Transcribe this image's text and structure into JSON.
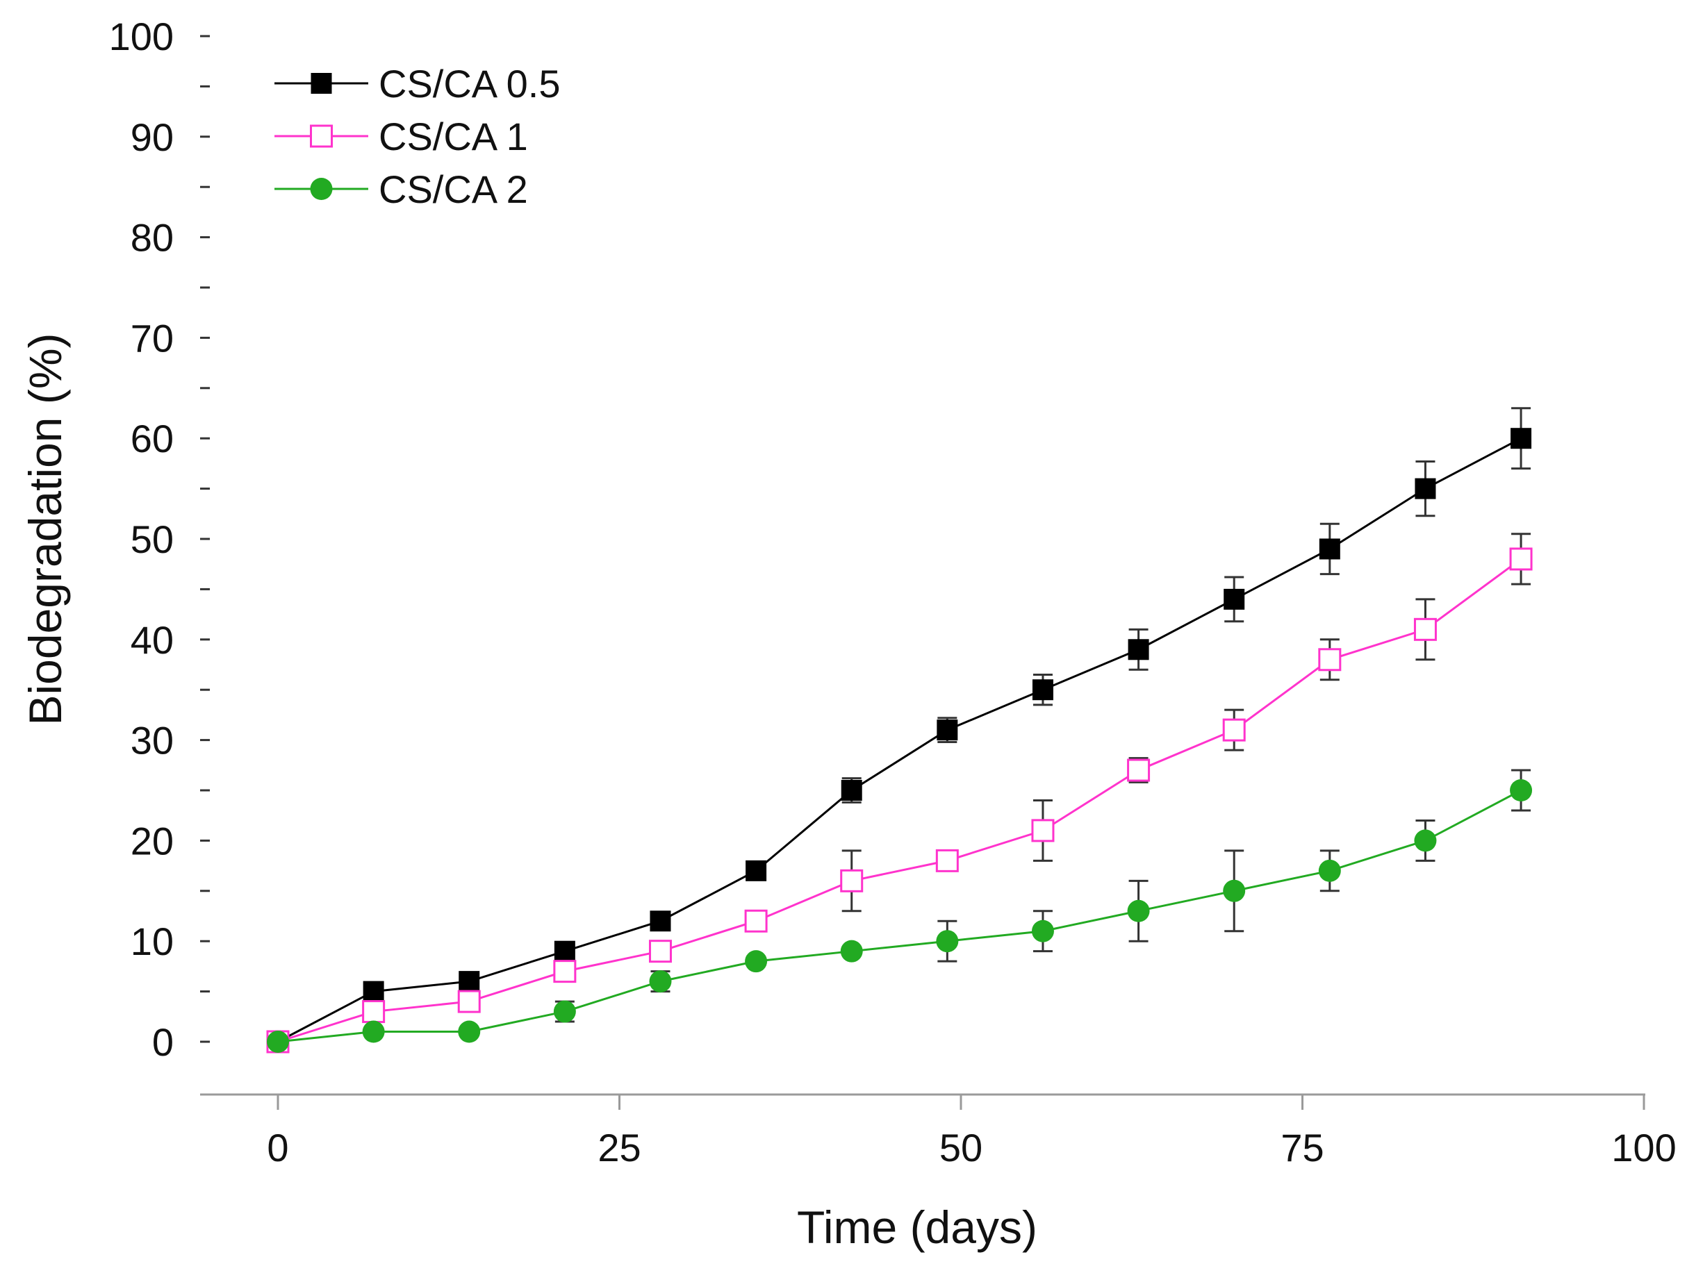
{
  "chart_data": {
    "type": "line",
    "title": "",
    "xlabel": "Time (days)",
    "ylabel": "Biodegradation (%)",
    "xlim": [
      -7,
      100
    ],
    "ylim": [
      -5,
      100
    ],
    "x_ticks": [
      0,
      25,
      50,
      75,
      100
    ],
    "x_tick_labels": [
      "0",
      "25",
      "50",
      "75",
      "100"
    ],
    "y_ticks": [
      0,
      10,
      20,
      30,
      40,
      50,
      60,
      70,
      80,
      90,
      100
    ],
    "y_tick_labels": [
      "0",
      "10",
      "20",
      "30",
      "40",
      "50",
      "60",
      "70",
      "80",
      "90",
      "100"
    ],
    "y_minor_ticks": [
      5,
      15,
      25,
      35,
      45,
      55,
      65,
      75,
      85,
      95
    ],
    "grid": false,
    "legend_position": "top-left",
    "x": [
      0,
      7,
      14,
      21,
      28,
      35,
      42,
      49,
      56,
      63,
      70,
      77,
      84,
      91
    ],
    "series": [
      {
        "name": "CS/CA 0.5",
        "color": "#000000",
        "marker": "square-filled",
        "values": [
          0,
          5,
          6,
          9,
          12,
          17,
          25,
          31,
          35,
          39,
          44,
          49,
          55,
          60
        ],
        "errors": [
          0,
          0,
          0,
          0,
          0,
          0,
          1.2,
          1.2,
          1.5,
          2.0,
          2.2,
          2.5,
          2.7,
          3.0
        ]
      },
      {
        "name": "CS/CA 1",
        "color": "#ff33cc",
        "marker": "square-open",
        "values": [
          0,
          3,
          4,
          7,
          9,
          12,
          16,
          18,
          21,
          27,
          31,
          38,
          41,
          48
        ],
        "errors": [
          0,
          0,
          0,
          0,
          0,
          0,
          3.0,
          0,
          3.0,
          1.2,
          2.0,
          2.0,
          3.0,
          2.5
        ]
      },
      {
        "name": "CS/CA 2",
        "color": "#22aa22",
        "marker": "circle-filled",
        "values": [
          0,
          1,
          1,
          3,
          6,
          8,
          9,
          10,
          11,
          13,
          15,
          17,
          20,
          25
        ],
        "errors": [
          0,
          0,
          0,
          1.0,
          1.0,
          0,
          0,
          2.0,
          2.0,
          3.0,
          4.0,
          2.0,
          2.0,
          2.0
        ]
      }
    ]
  }
}
